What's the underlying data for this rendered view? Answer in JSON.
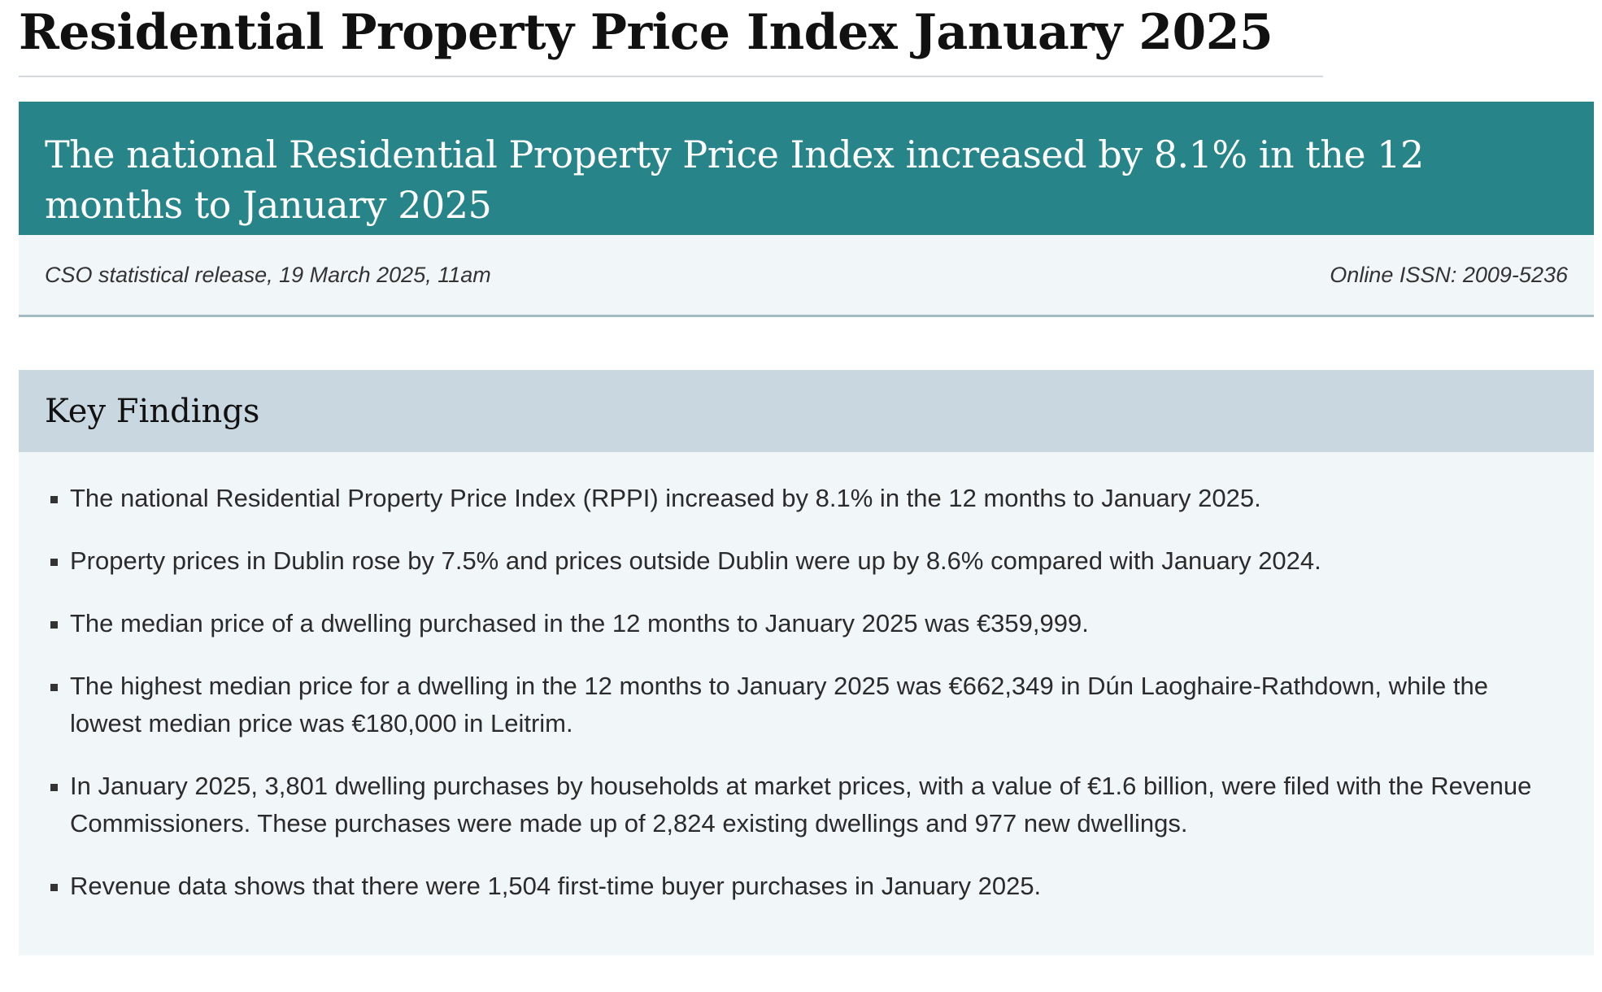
{
  "page": {
    "title": "Residential Property Price Index January 2025"
  },
  "headline": {
    "text": "The national Residential Property Price Index increased by 8.1% in the 12 months to January 2025"
  },
  "release": {
    "info": "CSO statistical release, 19 March 2025, 11am",
    "issn": "Online ISSN: 2009-5236"
  },
  "key_findings": {
    "title": "Key Findings",
    "items": [
      "The national Residential Property Price Index (RPPI) increased by 8.1% in the 12 months to January 2025.",
      "Property prices in Dublin rose by 7.5% and prices outside Dublin were up by 8.6% compared with January 2024.",
      "The median price of a dwelling purchased in the 12 months to January 2025 was €359,999.",
      "The highest median price for a dwelling in the 12 months to January 2025 was €662,349 in Dún Laoghaire-Rathdown, while the lowest median price was €180,000 in Leitrim.",
      "In January 2025, 3,801 dwelling purchases by households at market prices, with a value of €1.6 billion, were filed with the Revenue Commissioners. These purchases were made up of 2,824 existing dwellings and 977 new dwellings.",
      "Revenue data shows that there were 1,504 first-time buyer purchases in January 2025."
    ]
  },
  "colors": {
    "headline_bg": "#278489",
    "release_bg": "#f1f6f8",
    "findings_header_bg": "#c9d7e0"
  }
}
